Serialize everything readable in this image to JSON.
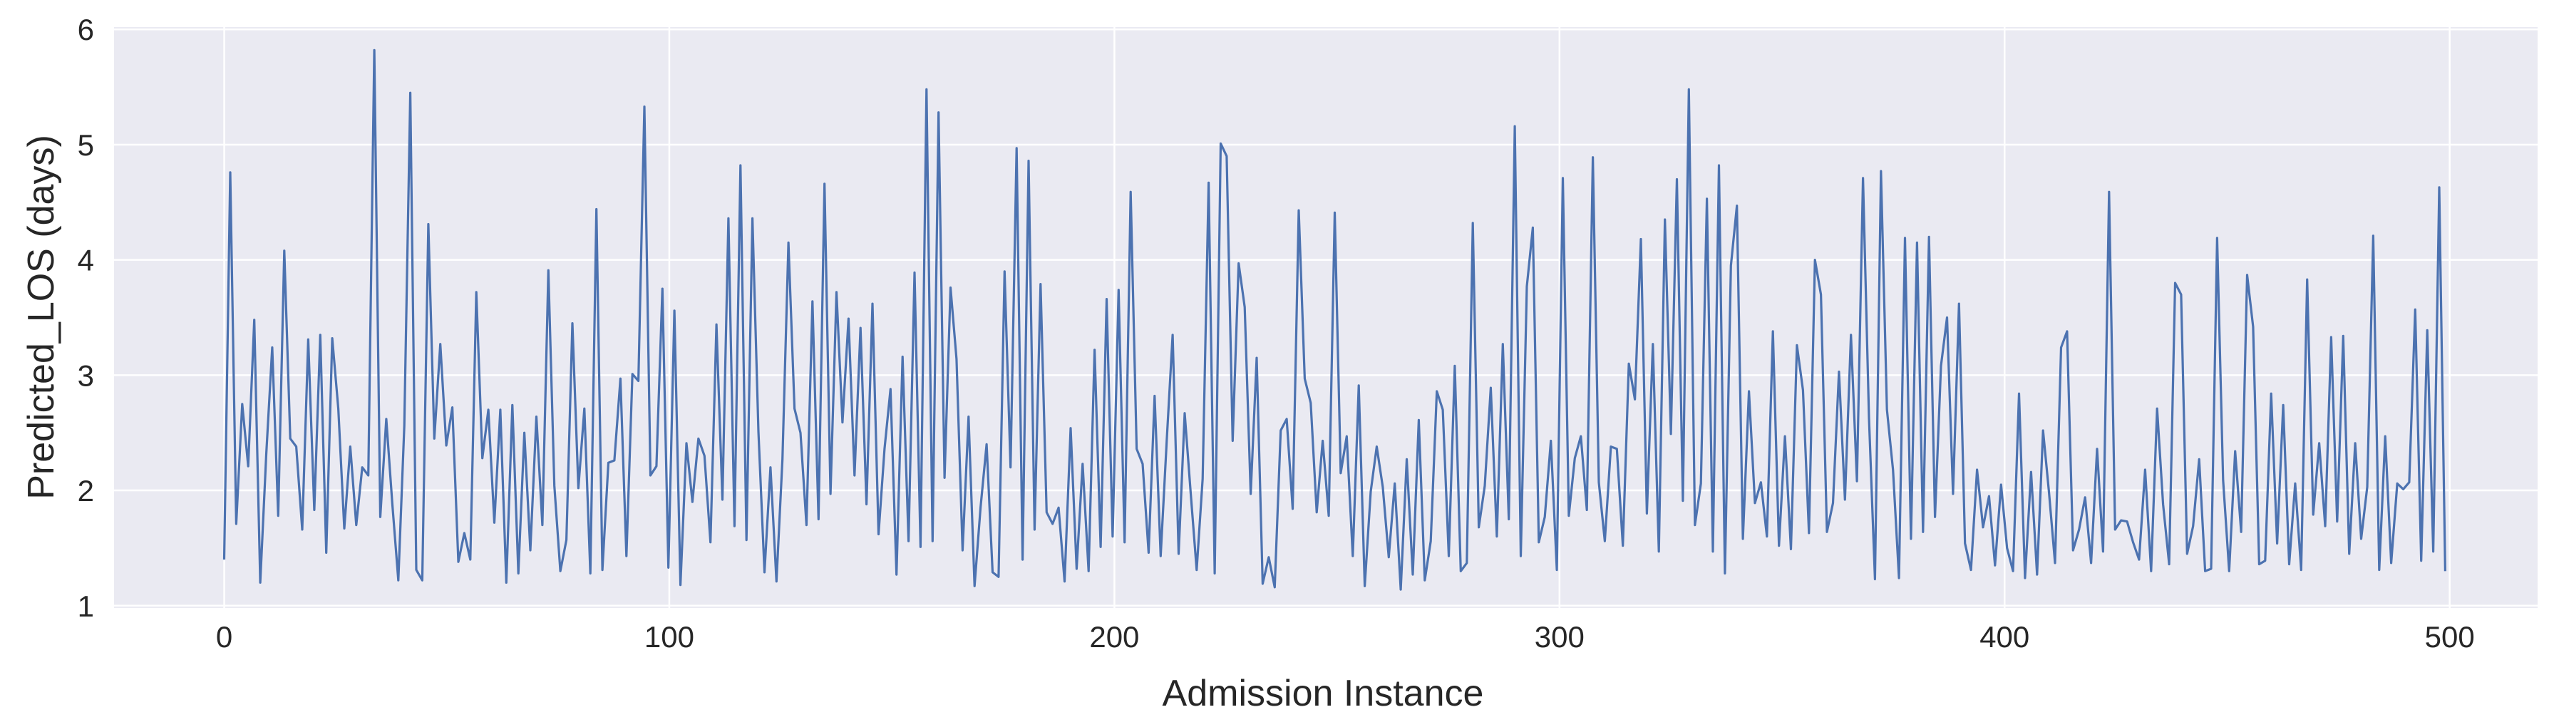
{
  "chart_data": {
    "type": "line",
    "title": "",
    "xlabel": "Admission Instance",
    "ylabel": "Predicted_LOS (days)",
    "xlim": [
      -24.75,
      519.75
    ],
    "ylim": [
      0.98,
      6.02
    ],
    "xticks": [
      0,
      100,
      200,
      300,
      400,
      500
    ],
    "yticks": [
      1,
      2,
      3,
      4,
      5,
      6
    ],
    "grid": true,
    "legend": "none",
    "colors": {
      "background": "#eaeaf2",
      "grid": "#ffffff",
      "line": "#4c72b0"
    },
    "series": [
      {
        "values": [
          1.4,
          4.76,
          1.71,
          2.75,
          2.21,
          3.48,
          1.2,
          2.31,
          3.24,
          1.78,
          4.08,
          2.45,
          2.38,
          1.66,
          3.31,
          1.83,
          3.35,
          1.46,
          3.32,
          2.71,
          1.67,
          2.38,
          1.7,
          2.2,
          2.13,
          5.82,
          1.77,
          2.62,
          1.89,
          1.22,
          2.56,
          5.45,
          1.31,
          1.22,
          4.31,
          2.45,
          3.27,
          2.39,
          2.72,
          1.38,
          1.63,
          1.4,
          3.72,
          2.28,
          2.7,
          1.72,
          2.7,
          1.2,
          2.74,
          1.28,
          2.5,
          1.48,
          2.64,
          1.7,
          3.91,
          2.04,
          1.3,
          1.57,
          3.45,
          2.02,
          2.71,
          1.28,
          4.44,
          1.31,
          2.24,
          2.26,
          2.97,
          1.43,
          3.01,
          2.95,
          5.33,
          2.13,
          2.21,
          3.75,
          1.33,
          3.56,
          1.18,
          2.41,
          1.9,
          2.45,
          2.3,
          1.55,
          3.44,
          1.92,
          4.36,
          1.69,
          4.82,
          1.57,
          4.36,
          2.51,
          1.29,
          2.2,
          1.21,
          2.27,
          4.15,
          2.71,
          2.5,
          1.7,
          3.64,
          1.75,
          4.66,
          1.97,
          3.72,
          2.59,
          3.49,
          2.13,
          3.41,
          1.88,
          3.62,
          1.62,
          2.36,
          2.88,
          1.27,
          3.16,
          1.56,
          3.89,
          1.51,
          5.48,
          1.56,
          5.28,
          2.11,
          3.76,
          3.14,
          1.48,
          2.64,
          1.17,
          1.85,
          2.4,
          1.29,
          1.25,
          3.9,
          2.2,
          4.97,
          1.4,
          4.86,
          1.66,
          3.79,
          1.81,
          1.71,
          1.85,
          1.21,
          2.54,
          1.32,
          2.23,
          1.3,
          3.22,
          1.51,
          3.66,
          1.6,
          3.74,
          1.55,
          4.59,
          2.36,
          2.23,
          1.46,
          2.82,
          1.43,
          2.42,
          3.35,
          1.45,
          2.67,
          1.98,
          1.31,
          2.1,
          4.67,
          1.28,
          5.01,
          4.9,
          2.43,
          3.97,
          3.59,
          1.97,
          3.15,
          1.19,
          1.42,
          1.16,
          2.52,
          2.62,
          1.84,
          4.43,
          2.97,
          2.76,
          1.81,
          2.43,
          1.78,
          4.41,
          2.15,
          2.47,
          1.43,
          2.91,
          1.17,
          1.99,
          2.38,
          2.03,
          1.42,
          2.06,
          1.14,
          2.27,
          1.27,
          2.61,
          1.22,
          1.56,
          2.86,
          2.7,
          1.43,
          3.08,
          1.3,
          1.37,
          4.32,
          1.68,
          2.04,
          2.89,
          1.6,
          3.27,
          1.75,
          5.16,
          1.43,
          3.77,
          4.28,
          1.55,
          1.77,
          2.43,
          1.31,
          4.71,
          1.78,
          2.28,
          2.47,
          1.83,
          4.89,
          2.07,
          1.56,
          2.38,
          2.36,
          1.52,
          3.1,
          2.79,
          4.18,
          1.8,
          3.27,
          1.47,
          4.35,
          2.49,
          4.7,
          1.91,
          5.48,
          1.7,
          2.06,
          4.53,
          1.47,
          4.82,
          1.28,
          3.95,
          4.47,
          1.58,
          2.86,
          1.89,
          2.07,
          1.6,
          3.38,
          1.52,
          2.47,
          1.49,
          3.26,
          2.87,
          1.63,
          4.0,
          3.7,
          1.64,
          1.89,
          3.03,
          1.92,
          3.35,
          2.08,
          4.71,
          2.63,
          1.23,
          4.77,
          2.7,
          2.18,
          1.24,
          4.19,
          1.58,
          4.15,
          1.64,
          4.2,
          1.77,
          3.08,
          3.5,
          1.97,
          3.62,
          1.54,
          1.31,
          2.18,
          1.68,
          1.95,
          1.35,
          2.05,
          1.5,
          1.3,
          2.84,
          1.24,
          2.16,
          1.27,
          2.52,
          1.98,
          1.37,
          3.24,
          3.38,
          1.48,
          1.66,
          1.94,
          1.37,
          2.36,
          1.47,
          4.59,
          1.66,
          1.74,
          1.73,
          1.55,
          1.4,
          2.18,
          1.3,
          2.71,
          1.88,
          1.36,
          3.8,
          3.7,
          1.45,
          1.69,
          2.27,
          1.3,
          1.32,
          4.19,
          2.09,
          1.3,
          2.34,
          1.64,
          3.87,
          3.42,
          1.36,
          1.39,
          2.84,
          1.54,
          2.74,
          1.36,
          2.06,
          1.31,
          3.83,
          1.79,
          2.41,
          1.69,
          3.33,
          1.73,
          3.34,
          1.45,
          2.41,
          1.58,
          2.03,
          4.21,
          1.31,
          2.47,
          1.37,
          2.06,
          2.01,
          2.07,
          3.57,
          1.39,
          3.39,
          1.47,
          4.63,
          1.3
        ]
      }
    ]
  }
}
